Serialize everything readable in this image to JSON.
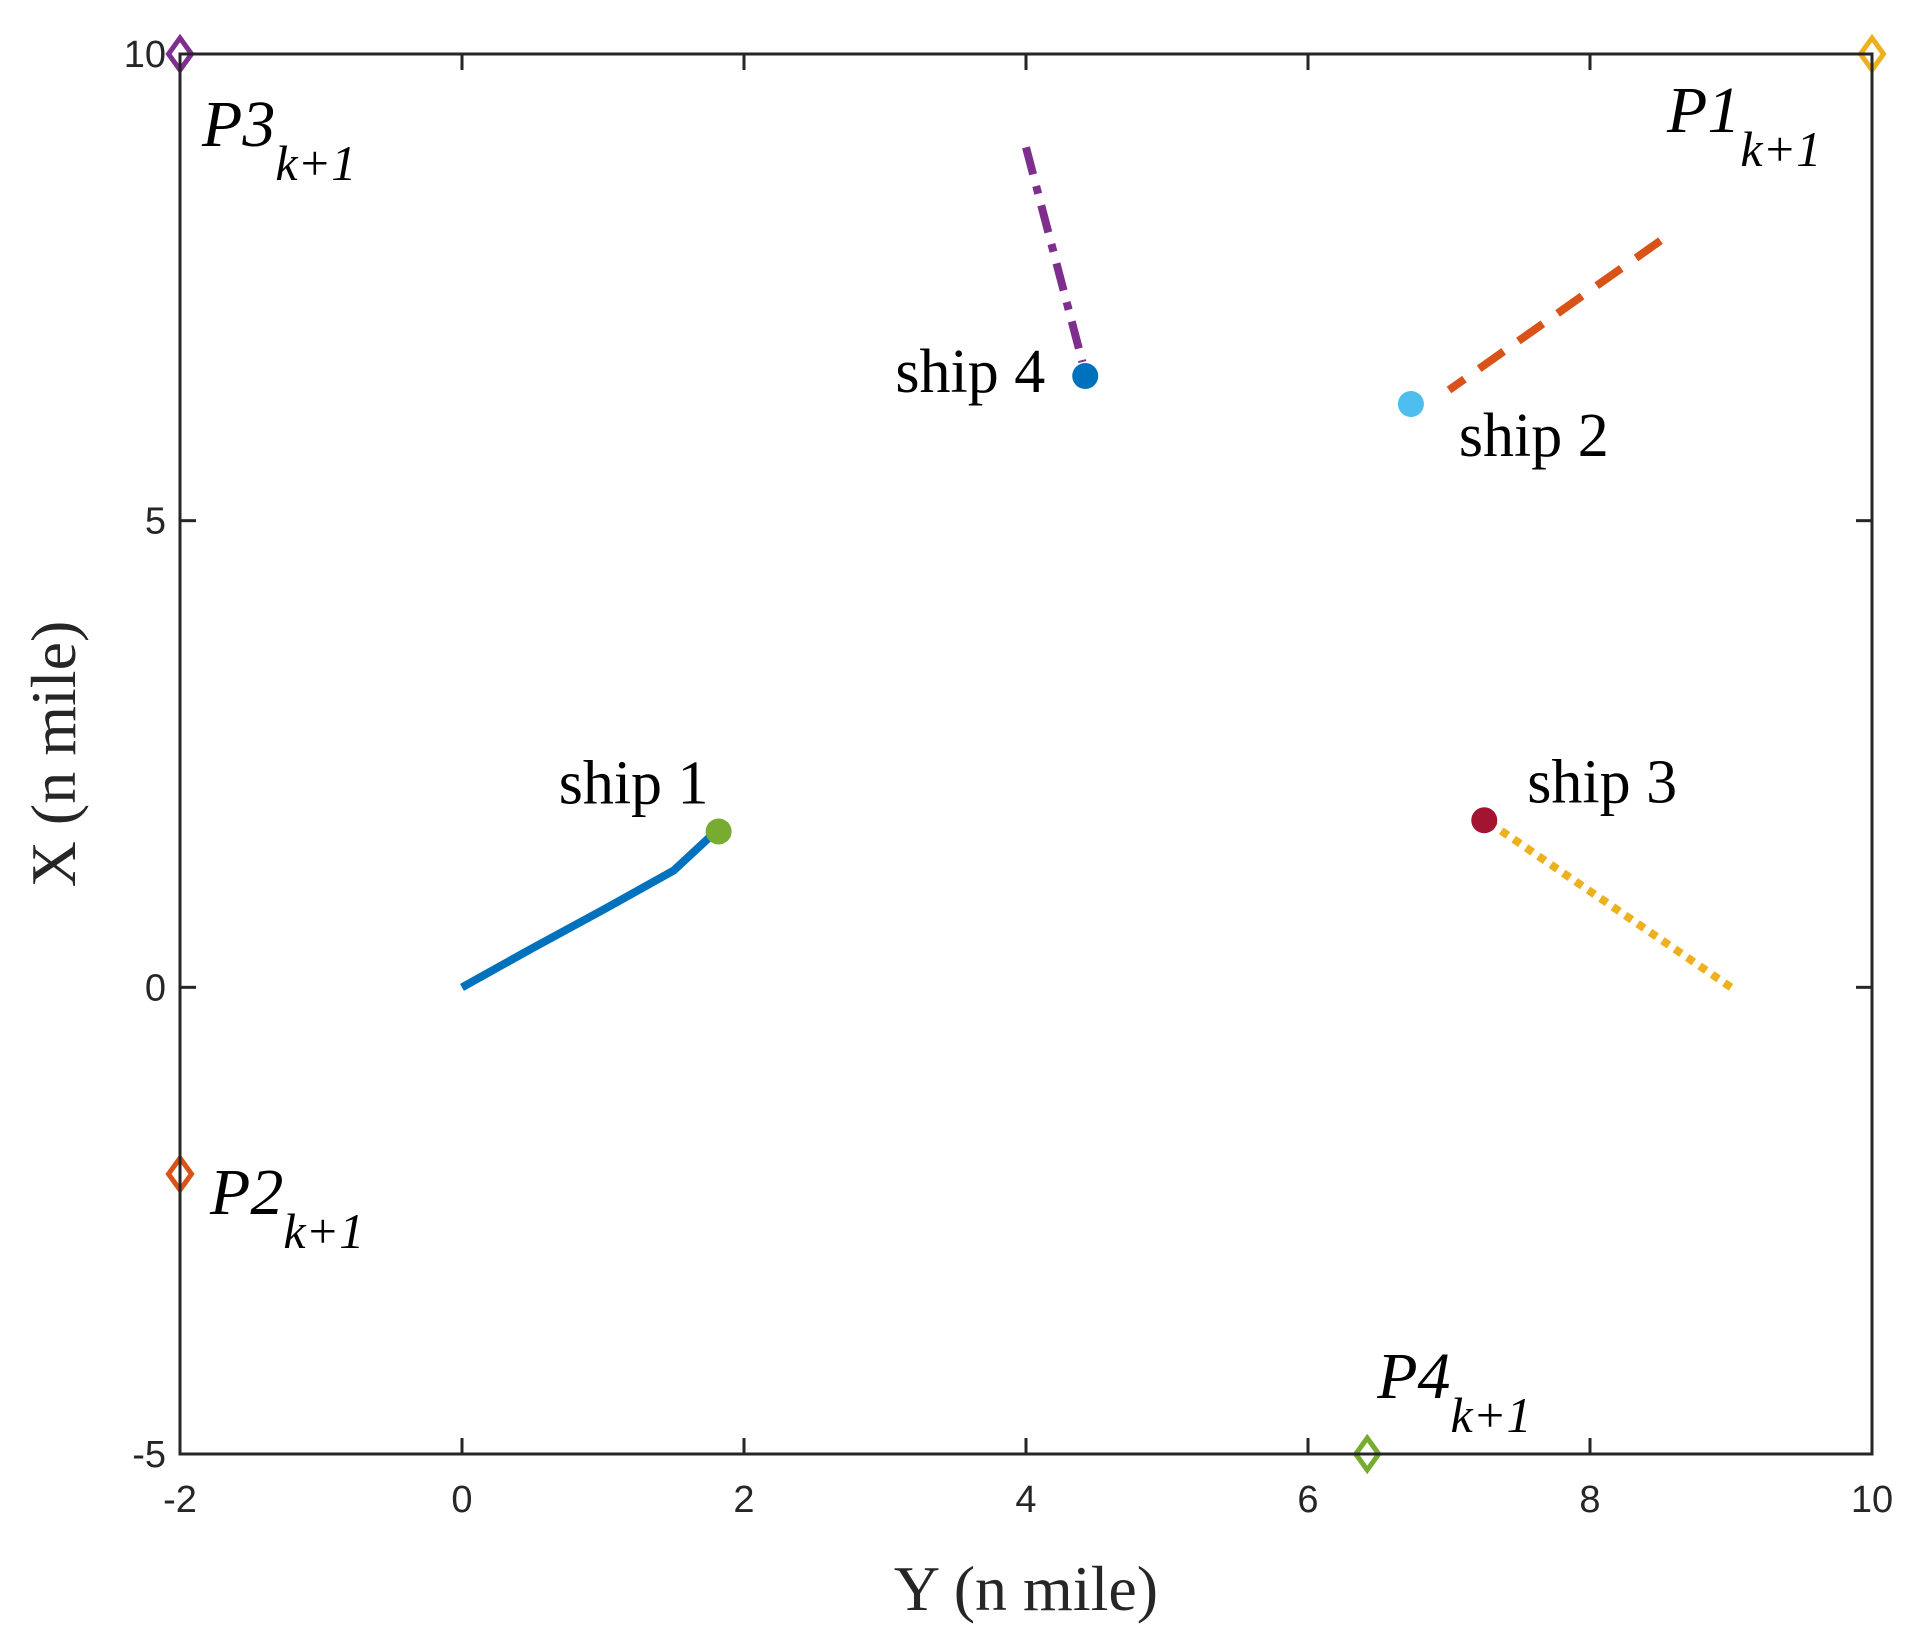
{
  "chart_data": {
    "type": "line",
    "title": "",
    "xlabel": "Y (n mile)",
    "ylabel": "X (n mile)",
    "xlim": [
      -2,
      10
    ],
    "ylim": [
      -5,
      10
    ],
    "xticks": [
      "-2",
      "0",
      "2",
      "4",
      "6",
      "8",
      "10"
    ],
    "yticks": [
      "-5",
      "0",
      "5",
      "10"
    ],
    "grid": false,
    "box": true,
    "series": [
      {
        "label": "ship 1",
        "line_color": "#0072BD",
        "line_style": "solid",
        "x": [
          0,
          0.5,
          1.0,
          1.5,
          1.8
        ],
        "y": [
          0,
          0.42,
          0.83,
          1.25,
          1.67
        ],
        "marker": {
          "x": 1.82,
          "y": 1.67,
          "color": "#77AC30"
        }
      },
      {
        "label": "ship 2",
        "line_color": "#D95319",
        "line_style": "dashed",
        "x": [
          8.5,
          7.0
        ],
        "y": [
          8.0,
          6.4
        ],
        "marker": {
          "x": 6.73,
          "y": 6.25,
          "color": "#4DBEEE"
        }
      },
      {
        "label": "ship 3",
        "line_color": "#EDB120",
        "line_style": "dotted",
        "x": [
          9.0,
          7.3
        ],
        "y": [
          0.0,
          1.75
        ],
        "marker": {
          "x": 7.25,
          "y": 1.79,
          "color": "#A2142F"
        }
      },
      {
        "label": "ship 4",
        "line_color": "#7E2F8E",
        "line_style": "dashdot",
        "x": [
          4.0,
          4.4
        ],
        "y": [
          9.0,
          6.7
        ],
        "marker": {
          "x": 4.42,
          "y": 6.55,
          "color": "#0072BD"
        }
      }
    ],
    "points": [
      {
        "name": "P1",
        "sub": "k+1",
        "x": 10,
        "y": 10,
        "color": "#EDB120"
      },
      {
        "name": "P2",
        "sub": "k+1",
        "x": -2,
        "y": -2,
        "color": "#D95319"
      },
      {
        "name": "P3",
        "sub": "k+1",
        "x": -2,
        "y": 10,
        "color": "#7E2F8E"
      },
      {
        "name": "P4",
        "sub": "k+1",
        "x": 6.42,
        "y": -5,
        "color": "#77AC30"
      }
    ]
  }
}
